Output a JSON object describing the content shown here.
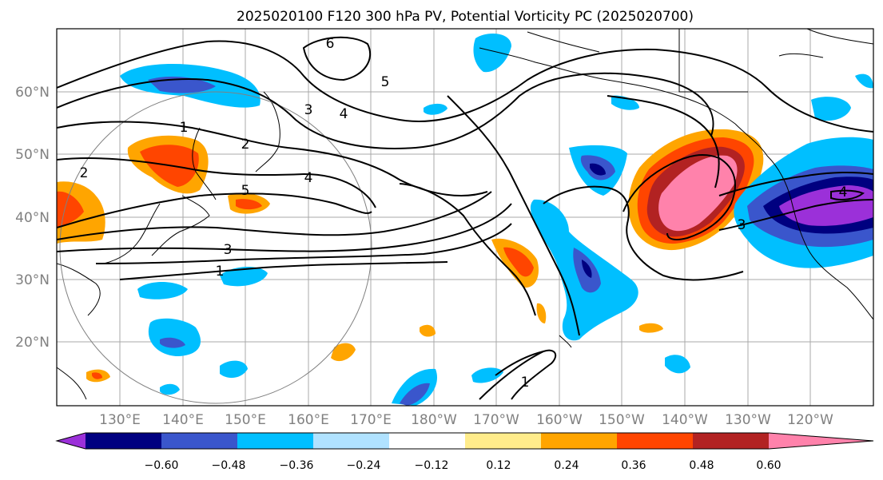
{
  "title": "2025020100 F120 300 hPa PV, Potential Vorticity PC (2025020700)",
  "lat_labels": [
    "60°N",
    "50°N",
    "40°N",
    "30°N",
    "20°N"
  ],
  "lon_labels": [
    "130°E",
    "140°E",
    "150°E",
    "160°E",
    "170°E",
    "180°W",
    "170°W",
    "160°W",
    "150°W",
    "140°W",
    "130°W",
    "120°W"
  ],
  "colorbar": {
    "ticks": [
      "−0.60",
      "−0.48",
      "−0.36",
      "−0.24",
      "−0.12",
      "0.12",
      "0.24",
      "0.36",
      "0.48",
      "0.60"
    ],
    "colors": [
      "#9b30d9",
      "#000080",
      "#3a56cc",
      "#00bfff",
      "#b0e2ff",
      "#ffffff",
      "#ffec8b",
      "#ffa500",
      "#ff4500",
      "#b22222",
      "#ff82ab"
    ]
  },
  "contour_labels": [
    "1",
    "2",
    "3",
    "4",
    "5",
    "6",
    "1",
    "2",
    "3",
    "4",
    "5",
    "3",
    "4",
    "1"
  ],
  "colors": {
    "ocean": "#ffffff",
    "contour": "#000000",
    "grid": "#a9a9a9",
    "axis_text": "#808080"
  }
}
